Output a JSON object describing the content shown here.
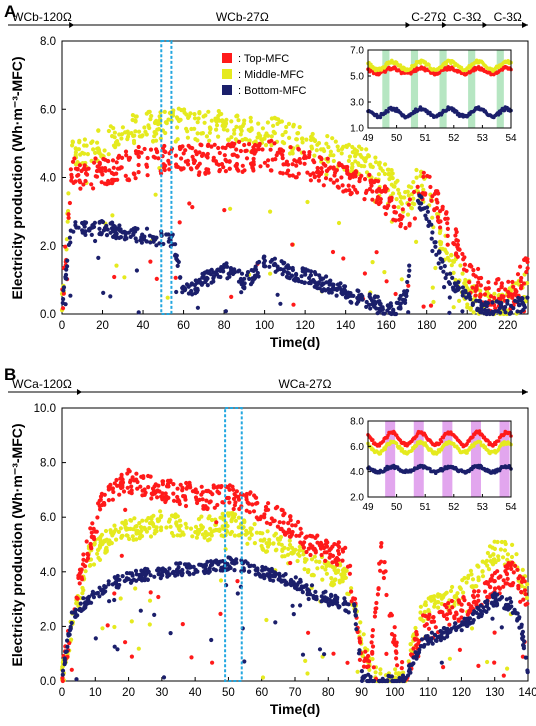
{
  "chart_data": [
    {
      "panel": "A",
      "type": "scatter",
      "xlabel": "Time(d)",
      "ylabel": "Electricity production (Wh·m⁻³-MFC)",
      "xlim": [
        0,
        230
      ],
      "ylim": [
        0,
        8
      ],
      "x_ticks": [
        0,
        20,
        40,
        60,
        80,
        100,
        120,
        140,
        160,
        180,
        200,
        220
      ],
      "y_ticks": [
        "0.0",
        "2.0",
        "4.0",
        "6.0",
        "8.0"
      ],
      "phases": [
        {
          "label": "WCb-120Ω",
          "start": 0,
          "end": 6
        },
        {
          "label": "WCb-27Ω",
          "start": 6,
          "end": 172
        },
        {
          "label": "C-27Ω",
          "start": 172,
          "end": 190
        },
        {
          "label": "C-3Ω",
          "start": 190,
          "end": 210
        },
        {
          "label": "C-3Ω",
          "start": 210,
          "end": 230
        }
      ],
      "highlight_window": [
        49,
        54
      ],
      "legend": [
        {
          "label": ": Top-MFC",
          "color": "#ff1a1a"
        },
        {
          "label": ": Middle-MFC",
          "color": "#e5ea1e"
        },
        {
          "label": ": Bottom-MFC",
          "color": "#1b1f6b"
        }
      ],
      "series": [
        {
          "name": "Top-MFC",
          "color": "#ff1a1a",
          "x": [
            0,
            5,
            10,
            20,
            30,
            40,
            50,
            60,
            70,
            80,
            90,
            100,
            110,
            120,
            130,
            140,
            150,
            160,
            165,
            170,
            175,
            180,
            185,
            190,
            195,
            200,
            205,
            210,
            215,
            220,
            225,
            229
          ],
          "y": [
            0.3,
            4.3,
            4.0,
            4.2,
            4.3,
            4.5,
            4.5,
            4.6,
            4.5,
            4.6,
            4.6,
            4.7,
            4.5,
            4.4,
            4.2,
            4.0,
            3.8,
            3.3,
            3.0,
            2.6,
            3.6,
            3.8,
            3.2,
            2.5,
            2.0,
            1.2,
            0.9,
            0.5,
            0.6,
            0.5,
            0.8,
            1.5
          ]
        },
        {
          "name": "Middle-MFC",
          "color": "#e5ea1e",
          "x": [
            0,
            5,
            10,
            20,
            30,
            40,
            50,
            60,
            70,
            80,
            90,
            100,
            110,
            120,
            130,
            140,
            150,
            160,
            165,
            170,
            175,
            180,
            185,
            190,
            195,
            200,
            205,
            210,
            215,
            220,
            225,
            229
          ],
          "y": [
            0.2,
            4.8,
            4.7,
            5.0,
            5.3,
            5.5,
            5.5,
            5.6,
            5.5,
            5.5,
            5.4,
            5.4,
            5.2,
            5.0,
            4.8,
            4.6,
            4.4,
            4.0,
            3.6,
            3.2,
            3.8,
            3.7,
            2.6,
            1.8,
            1.2,
            0.6,
            0.4,
            0.3,
            0.4,
            0.3,
            0.5,
            0.8
          ]
        },
        {
          "name": "Bottom-MFC",
          "color": "#1b1f6b",
          "x": [
            0,
            5,
            10,
            20,
            30,
            40,
            50,
            55,
            60,
            70,
            80,
            85,
            90,
            100,
            110,
            120,
            130,
            140,
            150,
            160,
            165,
            170,
            175,
            180,
            185,
            190,
            195,
            200,
            205,
            210,
            215,
            220,
            225,
            229
          ],
          "y": [
            0.2,
            2.6,
            2.5,
            2.5,
            2.4,
            2.3,
            2.2,
            2.1,
            0.6,
            1.0,
            1.3,
            1.2,
            0.9,
            1.5,
            1.3,
            1.1,
            0.9,
            0.6,
            0.4,
            0.2,
            0.1,
            0.6,
            3.4,
            3.0,
            1.8,
            1.1,
            0.8,
            0.4,
            0.2,
            0.1,
            0.2,
            0.2,
            0.3,
            0.3
          ]
        }
      ],
      "inset": {
        "xlim": [
          49,
          54
        ],
        "ylim": [
          1.0,
          7.0
        ],
        "x_ticks": [
          49,
          50,
          51,
          52,
          53,
          54
        ],
        "y_ticks": [
          "1.0",
          "3.0",
          "5.0",
          "7.0"
        ],
        "band_color": "#b6e6c2",
        "bands": [
          [
            49.5,
            49.75
          ],
          [
            50.5,
            50.75
          ],
          [
            51.5,
            51.75
          ],
          [
            52.5,
            52.75
          ],
          [
            53.5,
            53.75
          ]
        ],
        "series": [
          {
            "name": "Top-MFC",
            "color": "#ff1a1a",
            "base": 5.4,
            "amp": 0.2
          },
          {
            "name": "Middle-MFC",
            "color": "#e5ea1e",
            "base": 5.8,
            "amp": 0.3
          },
          {
            "name": "Bottom-MFC",
            "color": "#1b1f6b",
            "base": 2.2,
            "amp": 0.3
          }
        ]
      }
    },
    {
      "panel": "B",
      "type": "scatter",
      "xlabel": "Time(d)",
      "ylabel": "Electricity production (Wh·m⁻³-MFC)",
      "xlim": [
        0,
        140
      ],
      "ylim": [
        0,
        10
      ],
      "x_ticks": [
        0,
        10,
        20,
        30,
        40,
        50,
        60,
        70,
        80,
        90,
        100,
        110,
        120,
        130,
        140
      ],
      "y_ticks": [
        "0.0",
        "2.0",
        "4.0",
        "6.0",
        "8.0",
        "10.0"
      ],
      "phases": [
        {
          "label": "WCa-120Ω",
          "start": 0,
          "end": 6
        },
        {
          "label": "WCa-27Ω",
          "start": 6,
          "end": 140
        }
      ],
      "highlight_window": [
        49,
        54
      ],
      "series": [
        {
          "name": "Top-MFC",
          "color": "#ff1a1a",
          "x": [
            0,
            3,
            8,
            12,
            16,
            20,
            25,
            30,
            35,
            40,
            45,
            50,
            55,
            60,
            65,
            70,
            75,
            80,
            85,
            88,
            90,
            93,
            96,
            98,
            100,
            102,
            103,
            108,
            112,
            116,
            120,
            125,
            130,
            135,
            138,
            140
          ],
          "y": [
            0.1,
            2.5,
            5.0,
            6.5,
            7.0,
            7.3,
            7.2,
            7.0,
            6.9,
            6.8,
            6.7,
            6.8,
            6.6,
            6.3,
            6.0,
            5.5,
            5.0,
            4.8,
            4.6,
            3.0,
            0.5,
            1.0,
            4.8,
            3.0,
            1.5,
            0.3,
            0.0,
            2.0,
            2.0,
            2.5,
            2.6,
            3.0,
            3.5,
            4.0,
            3.5,
            3.0
          ]
        },
        {
          "name": "Middle-MFC",
          "color": "#e5ea1e",
          "x": [
            0,
            3,
            8,
            12,
            16,
            20,
            25,
            30,
            35,
            40,
            45,
            50,
            55,
            60,
            65,
            70,
            75,
            80,
            85,
            88,
            90,
            93,
            96,
            98,
            100,
            102,
            103,
            108,
            112,
            116,
            120,
            125,
            130,
            135,
            138,
            140
          ],
          "y": [
            0.1,
            2.0,
            4.5,
            5.0,
            5.5,
            5.5,
            5.6,
            5.8,
            5.7,
            5.6,
            5.6,
            5.8,
            5.5,
            5.2,
            5.0,
            4.6,
            4.3,
            4.0,
            3.8,
            3.0,
            1.5,
            0.4,
            0.1,
            0.0,
            0.0,
            0.0,
            0.0,
            2.6,
            2.8,
            3.0,
            3.3,
            3.8,
            4.8,
            4.6,
            3.9,
            3.2
          ]
        },
        {
          "name": "Bottom-MFC",
          "color": "#1b1f6b",
          "x": [
            0,
            3,
            8,
            12,
            16,
            20,
            25,
            30,
            35,
            40,
            45,
            50,
            55,
            60,
            65,
            70,
            75,
            80,
            85,
            88,
            90,
            93,
            96,
            98,
            100,
            102,
            103,
            108,
            112,
            116,
            120,
            125,
            130,
            135,
            138,
            140
          ],
          "y": [
            0.1,
            2.4,
            3.0,
            3.3,
            3.6,
            3.8,
            3.9,
            4.0,
            4.1,
            4.1,
            4.2,
            4.3,
            4.2,
            4.0,
            3.8,
            3.6,
            3.3,
            3.0,
            2.8,
            2.6,
            0.2,
            0.0,
            0.0,
            0.0,
            0.0,
            0.0,
            0.0,
            1.4,
            1.6,
            1.8,
            2.0,
            2.5,
            3.0,
            2.8,
            2.0,
            0.2
          ]
        }
      ],
      "inset": {
        "xlim": [
          49,
          54
        ],
        "ylim": [
          2.0,
          8.0
        ],
        "x_ticks": [
          49,
          50,
          51,
          52,
          53,
          54
        ],
        "y_ticks": [
          "2.0",
          "4.0",
          "6.0",
          "8.0"
        ],
        "band_color": "#e2a6ee",
        "bands": [
          [
            49.6,
            49.95
          ],
          [
            50.6,
            50.95
          ],
          [
            51.6,
            51.95
          ],
          [
            52.6,
            52.95
          ],
          [
            53.6,
            53.95
          ]
        ],
        "series": [
          {
            "name": "Top-MFC",
            "color": "#ff1a1a",
            "base": 6.6,
            "amp": 0.5
          },
          {
            "name": "Middle-MFC",
            "color": "#e5ea1e",
            "base": 5.9,
            "amp": 0.4
          },
          {
            "name": "Bottom-MFC",
            "color": "#1b1f6b",
            "base": 4.2,
            "amp": 0.2
          }
        ]
      }
    }
  ]
}
